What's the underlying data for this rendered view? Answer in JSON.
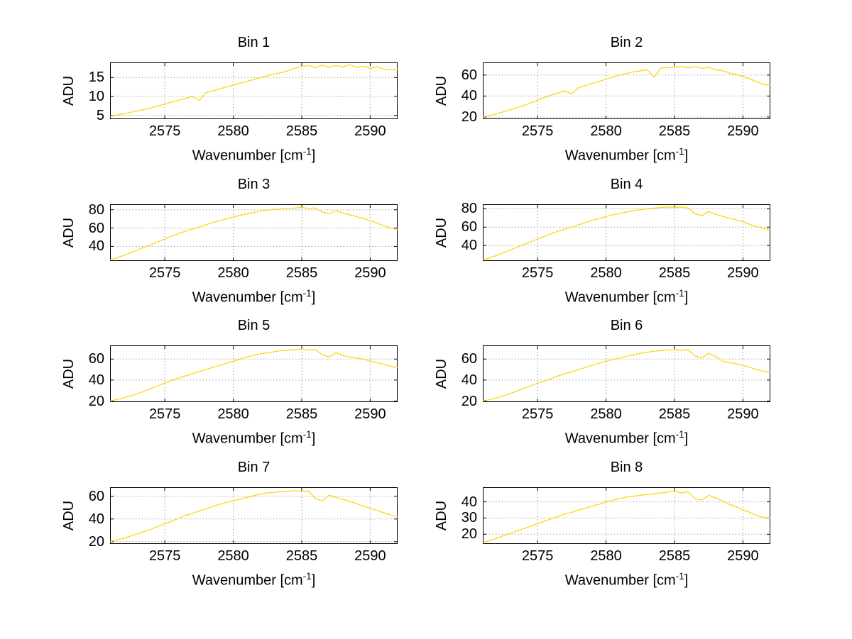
{
  "background": "#ffffff",
  "chart_data": {
    "type": "line",
    "layout": "4x2 grid of subplots, dotted grid on, boxed axes",
    "grid": "dotted",
    "axis_color": "#000000",
    "grid_color": "#9c9c9c",
    "series_color": "#ffd200",
    "y_label": "ADU",
    "x_label_parts": {
      "pre": "Wavenumber [cm",
      "sup": "-1",
      "post": "]"
    },
    "x_range": [
      2571,
      2592
    ],
    "x_ticks": [
      2575,
      2580,
      2585,
      2590
    ],
    "x": [
      2571,
      2571.5,
      2572,
      2572.5,
      2573,
      2573.5,
      2574,
      2574.5,
      2575,
      2575.5,
      2576,
      2576.5,
      2577,
      2577.5,
      2578,
      2578.5,
      2579,
      2579.5,
      2580,
      2580.5,
      2581,
      2581.5,
      2582,
      2582.5,
      2583,
      2583.5,
      2584,
      2584.5,
      2585,
      2585.5,
      2586,
      2586.5,
      2587,
      2587.5,
      2588,
      2588.5,
      2589,
      2589.5,
      2590,
      2590.5,
      2591,
      2591.5,
      2592
    ],
    "charts": [
      {
        "title": "Bin 1",
        "yticks": [
          5,
          10,
          15
        ],
        "ylim": [
          4,
          19
        ],
        "values": [
          4.8,
          5.1,
          5.4,
          5.8,
          6.2,
          6.6,
          7.0,
          7.5,
          8.0,
          8.5,
          9.0,
          9.5,
          10.0,
          8.9,
          11.0,
          11.5,
          12.0,
          12.5,
          13.0,
          13.5,
          14.0,
          14.5,
          15.0,
          15.5,
          15.9,
          16.3,
          16.8,
          17.5,
          17.9,
          18.2,
          17.6,
          18.3,
          17.7,
          18.2,
          17.8,
          18.4,
          17.7,
          18.0,
          17.4,
          17.9,
          17.2,
          17.0,
          17.3
        ]
      },
      {
        "title": "Bin 2",
        "yticks": [
          20,
          40,
          60
        ],
        "ylim": [
          18,
          72
        ],
        "values": [
          20,
          21.5,
          23,
          25,
          27,
          29,
          31,
          33.5,
          36,
          38.5,
          41,
          43,
          45,
          42,
          48,
          50,
          52,
          54,
          56,
          58,
          60,
          61.5,
          63,
          64,
          65,
          58,
          66.5,
          67,
          67.5,
          68,
          67,
          67.8,
          66.4,
          67.2,
          65,
          64,
          62,
          60.5,
          58.5,
          56.5,
          53.5,
          51,
          50.5
        ]
      },
      {
        "title": "Bin 3",
        "yticks": [
          40,
          60,
          80
        ],
        "ylim": [
          24,
          86
        ],
        "values": [
          25,
          27.5,
          30,
          33,
          36,
          39,
          42,
          45,
          48,
          51,
          54,
          56.5,
          59,
          61,
          63.5,
          66,
          68,
          70,
          72,
          74,
          75.5,
          77,
          78.5,
          79.5,
          80.5,
          81,
          81.5,
          82,
          82.5,
          81.5,
          82,
          77.5,
          75.5,
          79,
          76.5,
          74.5,
          72.5,
          70.5,
          68,
          65.5,
          62.5,
          60,
          58
        ]
      },
      {
        "title": "Bin 4",
        "yticks": [
          40,
          60,
          80
        ],
        "ylim": [
          23,
          85
        ],
        "values": [
          24,
          26.5,
          29,
          32,
          35,
          38,
          41,
          44,
          47,
          50,
          53,
          55.5,
          58,
          60,
          62.5,
          65,
          67.5,
          69.5,
          71.5,
          73.5,
          75,
          76.5,
          78,
          79,
          80,
          80.8,
          81.4,
          82,
          81.5,
          82,
          81,
          74.5,
          72.5,
          77,
          74,
          72,
          70,
          68,
          66,
          63,
          60.5,
          58.5,
          57
        ]
      },
      {
        "title": "Bin 5",
        "yticks": [
          20,
          40,
          60
        ],
        "ylim": [
          19,
          73
        ],
        "values": [
          20,
          21.5,
          23,
          25,
          27,
          29.5,
          32,
          34.5,
          37,
          39.5,
          42,
          44,
          46,
          48,
          50,
          52,
          54,
          56,
          58,
          60,
          62,
          63.5,
          65,
          66,
          67,
          68,
          68.5,
          69,
          69.5,
          68.5,
          69,
          64,
          62,
          66,
          63.5,
          62,
          61,
          60,
          58,
          56.5,
          55,
          53,
          52
        ]
      },
      {
        "title": "Bin 6",
        "yticks": [
          20,
          40,
          60
        ],
        "ylim": [
          19,
          73
        ],
        "values": [
          20,
          21.5,
          23,
          25,
          27,
          29.5,
          32,
          34.5,
          37,
          39,
          41.5,
          44,
          46,
          48,
          50,
          52,
          54,
          56,
          58,
          59.5,
          61,
          62.5,
          64,
          65.5,
          66.5,
          67.5,
          68,
          68.5,
          69,
          68,
          69,
          63,
          61,
          65.5,
          62.5,
          58,
          56.5,
          55.5,
          54,
          52,
          50,
          48.5,
          47
        ]
      },
      {
        "title": "Bin 7",
        "yticks": [
          20,
          40,
          60
        ],
        "ylim": [
          18,
          68
        ],
        "values": [
          20,
          21.5,
          23,
          25,
          27,
          29,
          31,
          33.5,
          36,
          38,
          40.5,
          43,
          45,
          47,
          49,
          51,
          53,
          54.5,
          56,
          57.5,
          59,
          60.5,
          62,
          63,
          63.5,
          64,
          64.5,
          65,
          64.2,
          64.8,
          58,
          56,
          61,
          59,
          57.5,
          55.5,
          53.5,
          51.5,
          49.5,
          47.5,
          45.5,
          43.5,
          42
        ]
      },
      {
        "title": "Bin 8",
        "yticks": [
          20,
          30,
          40
        ],
        "ylim": [
          14,
          49
        ],
        "values": [
          15,
          16,
          17.5,
          19,
          20.5,
          22,
          23.5,
          25,
          26.5,
          28,
          29.5,
          31,
          32.5,
          33.5,
          35,
          36,
          37.5,
          38.5,
          40,
          41,
          42,
          43,
          43.5,
          44,
          44.5,
          45,
          45.5,
          46,
          46.5,
          45.5,
          46.2,
          42,
          41,
          44,
          42.5,
          40.5,
          38.5,
          37,
          35,
          33.5,
          31.5,
          30.5,
          30
        ]
      }
    ]
  }
}
